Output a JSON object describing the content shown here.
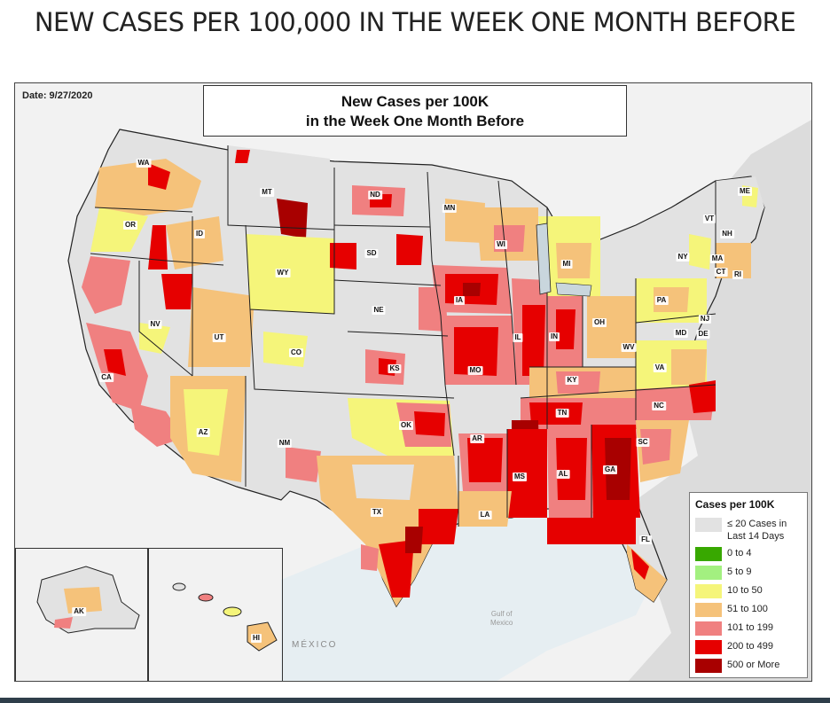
{
  "heading": "NEW CASES PER 100,000 IN THE WEEK ONE MONTH BEFORE",
  "map": {
    "date": "Date: 9/27/2020",
    "title_line1": "New Cases per 100K",
    "title_line2": "in the Week One Month Before",
    "basemap_labels": {
      "mexico": "MÉXICO",
      "gulf_line1": "Gulf of",
      "gulf_line2": "Mexico"
    },
    "state_labels": [
      "WA",
      "OR",
      "CA",
      "NV",
      "ID",
      "MT",
      "WY",
      "UT",
      "AZ",
      "CO",
      "NM",
      "ND",
      "SD",
      "NE",
      "KS",
      "OK",
      "TX",
      "MN",
      "IA",
      "MO",
      "AR",
      "LA",
      "WI",
      "IL",
      "MI",
      "IN",
      "OH",
      "KY",
      "TN",
      "MS",
      "AL",
      "GA",
      "FL",
      "SC",
      "NC",
      "VA",
      "WV",
      "PA",
      "NY",
      "VT",
      "NH",
      "ME",
      "MA",
      "CT",
      "RI",
      "NJ",
      "DE",
      "MD",
      "AK",
      "HI"
    ],
    "colors": {
      "no_data": "#e2e2e2",
      "c0_4": "#38a800",
      "c5_9": "#a3f080",
      "c10_50": "#f5f57a",
      "c51_100": "#f5c27a",
      "c101_199": "#f08080",
      "c200_499": "#e60000",
      "c500_plus": "#a80000"
    }
  },
  "legend": {
    "title": "Cases per 100K",
    "items": [
      {
        "label_line1": "≤ 20 Cases in",
        "label_line2": "Last 14 Days",
        "color": "#e2e2e2"
      },
      {
        "label_line1": "0 to 4",
        "label_line2": "",
        "color": "#38a800"
      },
      {
        "label_line1": "5 to 9",
        "label_line2": "",
        "color": "#a3f080"
      },
      {
        "label_line1": "10 to 50",
        "label_line2": "",
        "color": "#f5f57a"
      },
      {
        "label_line1": "51 to 100",
        "label_line2": "",
        "color": "#f5c27a"
      },
      {
        "label_line1": "101 to 199",
        "label_line2": "",
        "color": "#f08080"
      },
      {
        "label_line1": "200 to 499",
        "label_line2": "",
        "color": "#e60000"
      },
      {
        "label_line1": "500 or More",
        "label_line2": "",
        "color": "#a80000"
      }
    ]
  }
}
